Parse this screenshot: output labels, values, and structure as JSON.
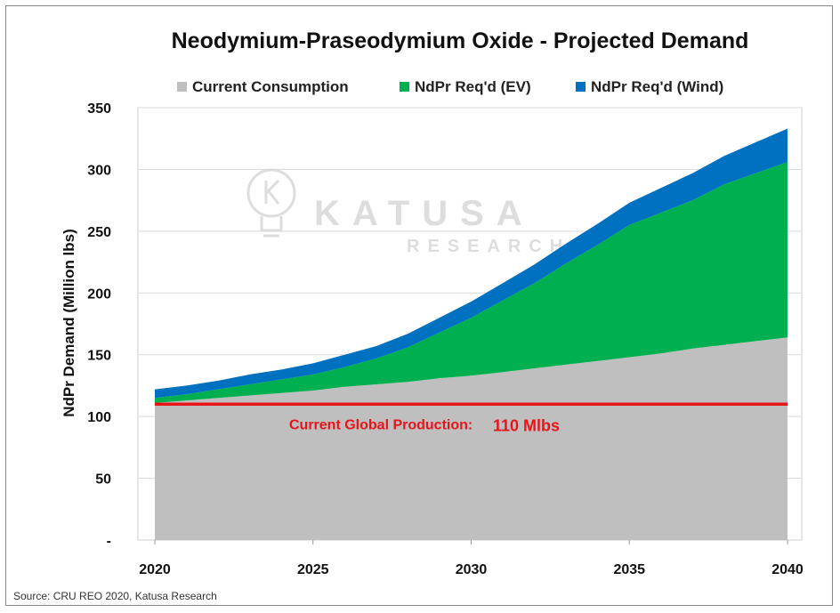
{
  "chart_data": {
    "type": "area",
    "title": "Neodymium-Praseodymium Oxide - Projected Demand",
    "ylabel": "NdPr Demand (Million lbs)",
    "xlabel": "",
    "x": [
      2020,
      2021,
      2022,
      2023,
      2024,
      2025,
      2026,
      2027,
      2028,
      2029,
      2030,
      2031,
      2032,
      2033,
      2034,
      2035,
      2036,
      2037,
      2038,
      2039,
      2040
    ],
    "xticks": [
      "2020",
      "2025",
      "2030",
      "2035",
      "2040"
    ],
    "yticks": [
      "-",
      "50",
      "100",
      "150",
      "200",
      "250",
      "300",
      "350"
    ],
    "ylim": [
      0,
      350
    ],
    "xlim": [
      2020,
      2040
    ],
    "stacked": true,
    "series": [
      {
        "name": "Current Consumption",
        "color": "#bfbfbf",
        "values": [
          111,
          113,
          115,
          117,
          119,
          121,
          124,
          126,
          128,
          131,
          133,
          136,
          139,
          142,
          145,
          148,
          151,
          155,
          158,
          161,
          164
        ]
      },
      {
        "name": "NdPr Req'd (EV)",
        "color": "#00b050",
        "values": [
          4,
          5,
          7,
          9,
          11,
          13,
          16,
          21,
          28,
          37,
          47,
          58,
          69,
          82,
          94,
          107,
          114,
          120,
          130,
          136,
          142
        ]
      },
      {
        "name": "NdPr Req'd (Wind)",
        "color": "#0070c0",
        "values": [
          7,
          7,
          7,
          8,
          8,
          9,
          10,
          10,
          11,
          12,
          13,
          14,
          15,
          16,
          17,
          18,
          20,
          22,
          23,
          25,
          27
        ]
      }
    ],
    "reference_line": {
      "value": 110,
      "color": "#e8141a",
      "label": "Current Global Production:",
      "value_label": "110 Mlbs"
    },
    "legend_position": "top",
    "grid": "horizontal"
  },
  "source": "Source: CRU REO 2020, Katusa Research",
  "watermark": {
    "brand": "KATUSA",
    "sub": "RESEARCH",
    "icon": "lightbulb-k-icon"
  }
}
